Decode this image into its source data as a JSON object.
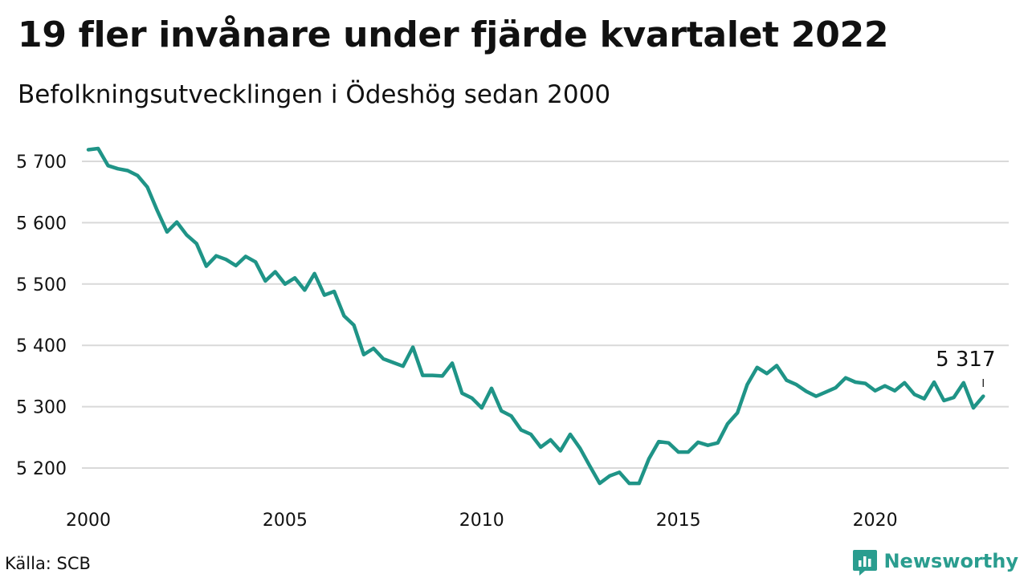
{
  "header": {
    "title": "19 fler invånare under fjärde kvartalet 2022",
    "subtitle": "Befolkningsutvecklingen i Ödeshög sedan 2000"
  },
  "footer": {
    "source": "Källa: SCB",
    "brand": "Newsworthy",
    "brand_icon": "newsworthy-logo-icon"
  },
  "colors": {
    "line": "#1f9487",
    "grid": "#d9d9d9",
    "brand": "#2a9d8f"
  },
  "chart_data": {
    "type": "line",
    "title": "19 fler invånare under fjärde kvartalet 2022",
    "subtitle": "Befolkningsutvecklingen i Ödeshög sedan 2000",
    "xlabel": "",
    "ylabel": "",
    "x_ticks": [
      2000,
      2005,
      2010,
      2015,
      2020
    ],
    "y_ticks": [
      {
        "value": 5200,
        "label": "5 200"
      },
      {
        "value": 5300,
        "label": "5 300"
      },
      {
        "value": 5400,
        "label": "5 400"
      },
      {
        "value": 5500,
        "label": "5 500"
      },
      {
        "value": 5600,
        "label": "5 600"
      },
      {
        "value": 5700,
        "label": "5 700"
      }
    ],
    "xlim": [
      2000,
      2023
    ],
    "ylim": [
      5150,
      5730
    ],
    "grid": true,
    "last_value_label": "5 317",
    "series": [
      {
        "x": [
          2000.0,
          2000.25,
          2000.5,
          2000.75,
          2001.0,
          2001.25,
          2001.5,
          2001.75,
          2002.0,
          2002.25,
          2002.5,
          2002.75,
          2003.0,
          2003.25,
          2003.5,
          2003.75,
          2004.0,
          2004.25,
          2004.5,
          2004.75,
          2005.0,
          2005.25,
          2005.5,
          2005.75,
          2006.0,
          2006.25,
          2006.5,
          2006.75,
          2007.0,
          2007.25,
          2007.5,
          2007.75,
          2008.0,
          2008.25,
          2008.5,
          2008.75,
          2009.0,
          2009.25,
          2009.5,
          2009.75,
          2010.0,
          2010.25,
          2010.5,
          2010.75,
          2011.0,
          2011.25,
          2011.5,
          2011.75,
          2012.0,
          2012.25,
          2012.5,
          2012.75,
          2013.0,
          2013.25,
          2013.5,
          2013.75,
          2014.0,
          2014.25,
          2014.5,
          2014.75,
          2015.0,
          2015.25,
          2015.5,
          2015.75,
          2016.0,
          2016.25,
          2016.5,
          2016.75,
          2017.0,
          2017.25,
          2017.5,
          2017.75,
          2018.0,
          2018.25,
          2018.5,
          2018.75,
          2019.0,
          2019.25,
          2019.5,
          2019.75,
          2020.0,
          2020.25,
          2020.5,
          2020.75,
          2021.0,
          2021.25,
          2021.5,
          2021.75,
          2022.0,
          2022.25,
          2022.5,
          2022.75
        ],
        "y": [
          5719,
          5721,
          5693,
          5688,
          5685,
          5677,
          5658,
          5620,
          5585,
          5601,
          5580,
          5566,
          5529,
          5546,
          5540,
          5530,
          5545,
          5536,
          5505,
          5520,
          5500,
          5510,
          5490,
          5517,
          5482,
          5488,
          5448,
          5433,
          5385,
          5395,
          5378,
          5372,
          5366,
          5397,
          5351,
          5351,
          5350,
          5371,
          5322,
          5314,
          5298,
          5330,
          5293,
          5285,
          5262,
          5255,
          5234,
          5246,
          5228,
          5255,
          5232,
          5203,
          5175,
          5187,
          5193,
          5175,
          5175,
          5215,
          5243,
          5241,
          5226,
          5226,
          5242,
          5237,
          5241,
          5272,
          5290,
          5336,
          5364,
          5354,
          5367,
          5343,
          5336,
          5325,
          5317,
          5324,
          5331,
          5347,
          5340,
          5338,
          5326,
          5334,
          5326,
          5339,
          5320,
          5313,
          5340,
          5310,
          5315,
          5339,
          5298,
          5317
        ]
      }
    ]
  }
}
